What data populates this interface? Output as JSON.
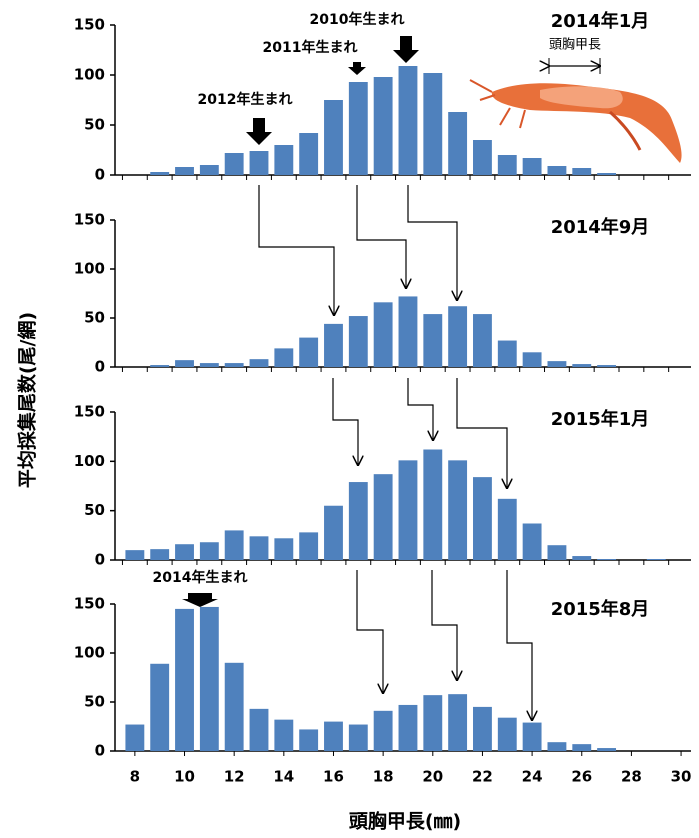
{
  "chart_data": [
    {
      "type": "bar",
      "title": "2014年1月",
      "color": "#4f81bd",
      "ylabel": "平均採集尾数(尾/網)",
      "annotations": [
        "2010年生まれ",
        "2011年生まれ",
        "2012年生まれ",
        "頭胸甲長"
      ],
      "x": [
        8,
        9,
        10,
        11,
        12,
        13,
        14,
        15,
        16,
        17,
        18,
        19,
        20,
        21,
        22,
        23,
        24,
        25,
        26,
        27,
        28,
        29,
        30
      ],
      "values": [
        0,
        3,
        8,
        10,
        22,
        24,
        30,
        42,
        75,
        93,
        98,
        109,
        102,
        63,
        35,
        20,
        17,
        9,
        7,
        2,
        0,
        0,
        0
      ],
      "xlim": [
        7.2,
        30.4
      ],
      "ylim": [
        0,
        150
      ],
      "yticks": [
        0,
        50,
        100,
        150
      ]
    },
    {
      "type": "bar",
      "title": "2014年9月",
      "color": "#4f81bd",
      "x": [
        8,
        9,
        10,
        11,
        12,
        13,
        14,
        15,
        16,
        17,
        18,
        19,
        20,
        21,
        22,
        23,
        24,
        25,
        26,
        27,
        28,
        29,
        30
      ],
      "values": [
        0,
        2,
        7,
        4,
        4,
        8,
        19,
        30,
        44,
        52,
        66,
        72,
        54,
        62,
        54,
        27,
        15,
        6,
        3,
        2,
        0,
        0,
        0
      ],
      "xlim": [
        7.2,
        30.4
      ],
      "ylim": [
        0,
        150
      ],
      "yticks": [
        0,
        50,
        100,
        150
      ]
    },
    {
      "type": "bar",
      "title": "2015年1月",
      "color": "#4f81bd",
      "x": [
        8,
        9,
        10,
        11,
        12,
        13,
        14,
        15,
        16,
        17,
        18,
        19,
        20,
        21,
        22,
        23,
        24,
        25,
        26,
        27,
        28,
        29,
        30
      ],
      "values": [
        10,
        11,
        16,
        18,
        30,
        24,
        22,
        28,
        55,
        79,
        87,
        101,
        112,
        101,
        84,
        62,
        37,
        15,
        4,
        1,
        0,
        1,
        0
      ],
      "xlim": [
        7.2,
        30.4
      ],
      "ylim": [
        0,
        150
      ],
      "yticks": [
        0,
        50,
        100,
        150
      ]
    },
    {
      "type": "bar",
      "title": "2015年8月",
      "color": "#4f81bd",
      "xlabel": "頭胸甲長(㎜)",
      "annotations": [
        "2014年生まれ"
      ],
      "x": [
        8,
        9,
        10,
        11,
        12,
        13,
        14,
        15,
        16,
        17,
        18,
        19,
        20,
        21,
        22,
        23,
        24,
        25,
        26,
        27,
        28,
        29,
        30
      ],
      "values": [
        27,
        89,
        145,
        147,
        90,
        43,
        32,
        22,
        30,
        27,
        41,
        47,
        57,
        58,
        45,
        34,
        29,
        9,
        7,
        3,
        0,
        0,
        0
      ],
      "xlim": [
        7.2,
        30.4
      ],
      "ylim": [
        0,
        150
      ],
      "yticks": [
        0,
        50,
        100,
        150
      ],
      "xticks": [
        8,
        10,
        12,
        14,
        16,
        18,
        20,
        22,
        24,
        26,
        28,
        30
      ]
    }
  ]
}
